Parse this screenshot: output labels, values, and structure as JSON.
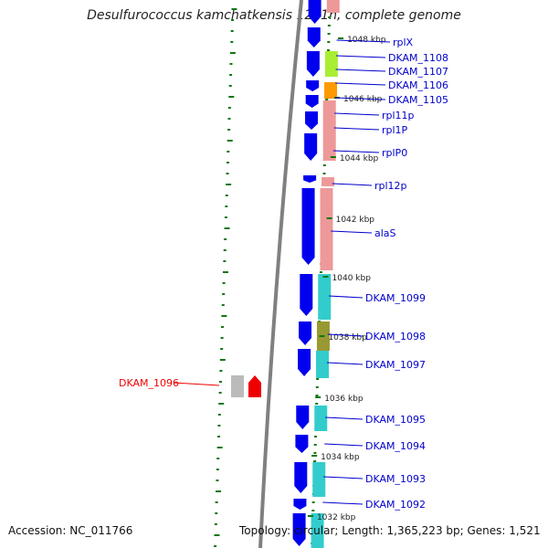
{
  "title": "Desulfurococcus kamchatkensis 1221n, complete genome",
  "accession": "Accession: NC_011766",
  "summary": "Topology: circular; Length: 1,365,223 bp; Genes: 1,521",
  "colors": {
    "backbone": "#808080",
    "cds_forward": "#0000ee",
    "gene_label": "#0000cc",
    "highlight": "#ee0000",
    "rRNA_like": "#ee9999",
    "cyan": "#33cccc",
    "olive": "#999933",
    "lime": "#aaee33",
    "orange": "#ff9900",
    "tick": "#117711"
  },
  "kbp_ticks": [
    "1048 kbp",
    "1046 kbp",
    "1044 kbp",
    "1042 kbp",
    "1040 kbp",
    "1038 kbp",
    "1036 kbp",
    "1034 kbp",
    "1032 kbp"
  ],
  "gene_labels": [
    "rplX",
    "DKAM_1108",
    "DKAM_1107",
    "DKAM_1106",
    "DKAM_1105",
    "rpl11p",
    "rpl1P",
    "rplP0",
    "rpl12p",
    "alaS",
    "DKAM_1099",
    "DKAM_1098",
    "DKAM_1097",
    "DKAM_1095",
    "DKAM_1094",
    "DKAM_1093",
    "DKAM_1092"
  ],
  "highlighted_gene": "DKAM_1096"
}
